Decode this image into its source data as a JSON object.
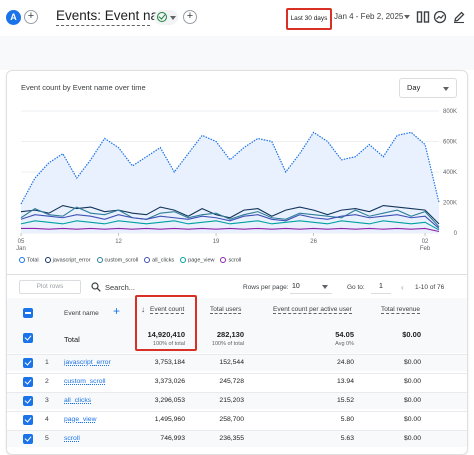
{
  "header": {
    "avatar_letter": "A",
    "add_label": "+",
    "title": "Events: Event name",
    "add_comparison_label": "+",
    "date_preset": "Last 30 days",
    "date_range": "Jan 4 - Feb 2, 2025"
  },
  "chart_panel": {
    "title": "Event count by Event name over time",
    "period": "Day"
  },
  "chart_data": {
    "type": "line",
    "x_ticks": [
      {
        "day": "05",
        "month": "Jan"
      },
      {
        "day": "12",
        "month": ""
      },
      {
        "day": "19",
        "month": ""
      },
      {
        "day": "26",
        "month": ""
      },
      {
        "day": "02",
        "month": "Feb"
      }
    ],
    "y_ticks": [
      "800K",
      "600K",
      "400K",
      "200K",
      "0"
    ],
    "ylim": [
      0,
      800000
    ],
    "legend": [
      "Total",
      "javascript_error",
      "custom_scroll",
      "all_clicks",
      "page_view",
      "scroll"
    ],
    "colors": {
      "Total": "#1a73e8",
      "javascript_error": "#12355b",
      "custom_scroll": "#2e7d9a",
      "all_clicks": "#3f51b5",
      "page_view": "#00a0a0",
      "scroll": "#8e24aa"
    },
    "series": [
      {
        "name": "Total",
        "values": [
          190000,
          360000,
          460000,
          520000,
          360000,
          480000,
          620000,
          560000,
          440000,
          500000,
          560000,
          400000,
          520000,
          640000,
          600000,
          480000,
          560000,
          620000,
          600000,
          400000,
          520000,
          660000,
          600000,
          480000,
          500000,
          580000,
          500000,
          640000,
          660000,
          580000,
          200000
        ]
      },
      {
        "name": "javascript_error",
        "values": [
          140000,
          150000,
          130000,
          180000,
          160000,
          170000,
          140000,
          150000,
          130000,
          120000,
          170000,
          150000,
          110000,
          160000,
          120000,
          100000,
          150000,
          160000,
          110000,
          150000,
          170000,
          150000,
          120000,
          150000,
          160000,
          140000,
          180000,
          170000,
          160000,
          150000,
          60000
        ]
      },
      {
        "name": "custom_scroll",
        "values": [
          100000,
          160000,
          120000,
          110000,
          170000,
          130000,
          120000,
          150000,
          100000,
          90000,
          130000,
          140000,
          100000,
          120000,
          130000,
          90000,
          120000,
          140000,
          100000,
          90000,
          130000,
          120000,
          110000,
          100000,
          150000,
          110000,
          130000,
          150000,
          110000,
          140000,
          40000
        ]
      },
      {
        "name": "all_clicks",
        "values": [
          90000,
          120000,
          110000,
          100000,
          120000,
          110000,
          90000,
          120000,
          100000,
          90000,
          110000,
          100000,
          90000,
          110000,
          100000,
          80000,
          110000,
          120000,
          90000,
          80000,
          120000,
          100000,
          90000,
          110000,
          120000,
          100000,
          110000,
          120000,
          100000,
          110000,
          30000
        ]
      },
      {
        "name": "page_view",
        "values": [
          60000,
          80000,
          70000,
          60000,
          80000,
          70000,
          60000,
          80000,
          70000,
          60000,
          70000,
          80000,
          60000,
          70000,
          80000,
          60000,
          70000,
          80000,
          60000,
          70000,
          80000,
          70000,
          60000,
          80000,
          70000,
          60000,
          80000,
          70000,
          60000,
          70000,
          20000
        ]
      },
      {
        "name": "scroll",
        "values": [
          30000,
          30000,
          25000,
          30000,
          25000,
          30000,
          25000,
          30000,
          25000,
          30000,
          25000,
          30000,
          25000,
          30000,
          25000,
          30000,
          25000,
          30000,
          25000,
          30000,
          25000,
          30000,
          25000,
          30000,
          25000,
          30000,
          25000,
          30000,
          25000,
          30000,
          10000
        ]
      }
    ]
  },
  "toolbar": {
    "plot_rows": "Plot rows",
    "search_placeholder": "Search...",
    "rows_per_page_label": "Rows per page:",
    "rows_per_page_value": "10",
    "goto_label": "Go to:",
    "goto_value": "1",
    "pager_text": "1-10 of 76"
  },
  "table": {
    "columns": {
      "event_name": "Event name",
      "event_count": "Event count",
      "total_users": "Total users",
      "per_user": "Event count per active user",
      "revenue": "Total revenue"
    },
    "totals": {
      "label": "Total",
      "event_count": "14,920,410",
      "event_count_sub": "100% of total",
      "total_users": "282,130",
      "total_users_sub": "100% of total",
      "per_user": "54.05",
      "per_user_sub": "Avg 0%",
      "revenue": "$0.00",
      "revenue_sub": ""
    },
    "rows": [
      {
        "idx": "1",
        "name": "javascript_error",
        "event_count": "3,753,184",
        "total_users": "152,544",
        "per_user": "24.80",
        "revenue": "$0.00"
      },
      {
        "idx": "2",
        "name": "custom_scroll",
        "event_count": "3,373,026",
        "total_users": "245,728",
        "per_user": "13.94",
        "revenue": "$0.00"
      },
      {
        "idx": "3",
        "name": "all_clicks",
        "event_count": "3,296,053",
        "total_users": "215,203",
        "per_user": "15.52",
        "revenue": "$0.00"
      },
      {
        "idx": "4",
        "name": "page_view",
        "event_count": "1,495,960",
        "total_users": "258,700",
        "per_user": "5.80",
        "revenue": "$0.00"
      },
      {
        "idx": "5",
        "name": "scroll",
        "event_count": "746,993",
        "total_users": "236,355",
        "per_user": "5.63",
        "revenue": "$0.00"
      }
    ]
  }
}
